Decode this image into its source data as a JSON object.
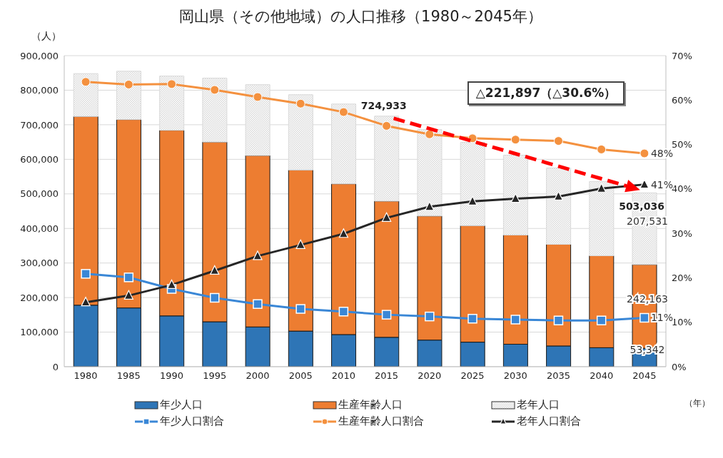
{
  "chart_data": {
    "type": "bar",
    "title": "岡山県（その他地域）の人口推移（1980～2045年）",
    "ylabel": "（人）",
    "xlabel": "（年）",
    "categories": [
      "1980",
      "1985",
      "1990",
      "1995",
      "2000",
      "2005",
      "2010",
      "2015",
      "2020",
      "2025",
      "2030",
      "2035",
      "2040",
      "2045"
    ],
    "stacked": true,
    "series": [
      {
        "name": "年少人口",
        "color": "#2e75b6",
        "values": [
          178000,
          170000,
          147000,
          130000,
          115000,
          103000,
          93000,
          85000,
          77000,
          71000,
          65000,
          60000,
          55000,
          53342
        ],
        "value_labels": [
          null,
          null,
          null,
          null,
          null,
          null,
          null,
          null,
          null,
          null,
          null,
          null,
          null,
          "53,342"
        ]
      },
      {
        "name": "生産年齢人口",
        "color": "#ed7d31",
        "values": [
          546000,
          545000,
          537000,
          520000,
          496000,
          466000,
          436000,
          394000,
          359000,
          337000,
          316000,
          294000,
          266000,
          242163
        ],
        "value_labels": [
          null,
          null,
          null,
          null,
          null,
          null,
          null,
          null,
          null,
          null,
          null,
          null,
          null,
          "242,163"
        ]
      },
      {
        "name": "老年人口",
        "color": "#d9d9d9",
        "values": [
          124000,
          140000,
          157000,
          185000,
          205000,
          218000,
          231000,
          245933,
          250000,
          241000,
          231000,
          221000,
          215000,
          207531
        ],
        "value_labels": [
          null,
          null,
          null,
          null,
          null,
          null,
          null,
          null,
          null,
          null,
          null,
          null,
          null,
          "207,531"
        ]
      },
      {
        "name": "年少人口割合",
        "type": "line",
        "axis": "y2",
        "marker": "square",
        "color": "#3a87d6",
        "values": [
          20.9,
          20.1,
          17.5,
          15.5,
          14.1,
          13.0,
          12.4,
          11.7,
          11.3,
          10.8,
          10.6,
          10.4,
          10.4,
          11
        ],
        "value_labels": [
          null,
          null,
          null,
          null,
          null,
          null,
          null,
          null,
          null,
          null,
          null,
          null,
          null,
          "11%"
        ]
      },
      {
        "name": "生産年齢人口割合",
        "type": "line",
        "axis": "y2",
        "marker": "circle",
        "color": "#f4913f",
        "values": [
          64.1,
          63.5,
          63.6,
          62.3,
          60.7,
          59.2,
          57.3,
          54.2,
          52.3,
          51.4,
          51.1,
          50.8,
          48.9,
          48
        ],
        "value_labels": [
          null,
          null,
          null,
          null,
          null,
          null,
          null,
          null,
          null,
          null,
          null,
          null,
          null,
          "48%"
        ]
      },
      {
        "name": "老年人口割合",
        "type": "line",
        "axis": "y2",
        "marker": "triangle",
        "color": "#262626",
        "values": [
          14.5,
          16.0,
          18.4,
          21.6,
          24.9,
          27.4,
          29.9,
          33.5,
          36.0,
          37.2,
          37.8,
          38.3,
          40.1,
          41
        ],
        "value_labels": [
          null,
          null,
          null,
          null,
          null,
          null,
          null,
          null,
          null,
          null,
          null,
          null,
          null,
          "41%"
        ]
      }
    ],
    "totals": [
      null,
      null,
      null,
      null,
      null,
      null,
      null,
      "724,933",
      null,
      null,
      null,
      null,
      null,
      "503,036"
    ],
    "annotations": [
      "△221,897（△30.6%）"
    ],
    "ylim": [
      0,
      900000
    ],
    "yticks": [
      0,
      {
        "value": 100000,
        "label": "100,000"
      },
      {
        "value": 200000,
        "label": "200,000"
      },
      {
        "value": 300000,
        "label": "300,000"
      },
      {
        "value": 400000,
        "label": "400,000"
      },
      {
        "value": 500000,
        "label": "500,000"
      },
      {
        "value": 600000,
        "label": "600,000"
      },
      {
        "value": 700000,
        "label": "700,000"
      },
      {
        "value": 800000,
        "label": "800,000"
      },
      {
        "value": 900000,
        "label": "900,000"
      }
    ],
    "y2lim": [
      0,
      70
    ],
    "y2ticks": [
      {
        "value": 0,
        "label": "0%"
      },
      {
        "value": 10,
        "label": "10%"
      },
      {
        "value": 20,
        "label": "20%"
      },
      {
        "value": 30,
        "label": "30%"
      },
      {
        "value": 40,
        "label": "40%"
      },
      {
        "value": 50,
        "label": "50%"
      },
      {
        "value": 60,
        "label": "60%"
      },
      {
        "value": 70,
        "label": "70%"
      }
    ],
    "grid": "y",
    "legend": "bottom"
  }
}
